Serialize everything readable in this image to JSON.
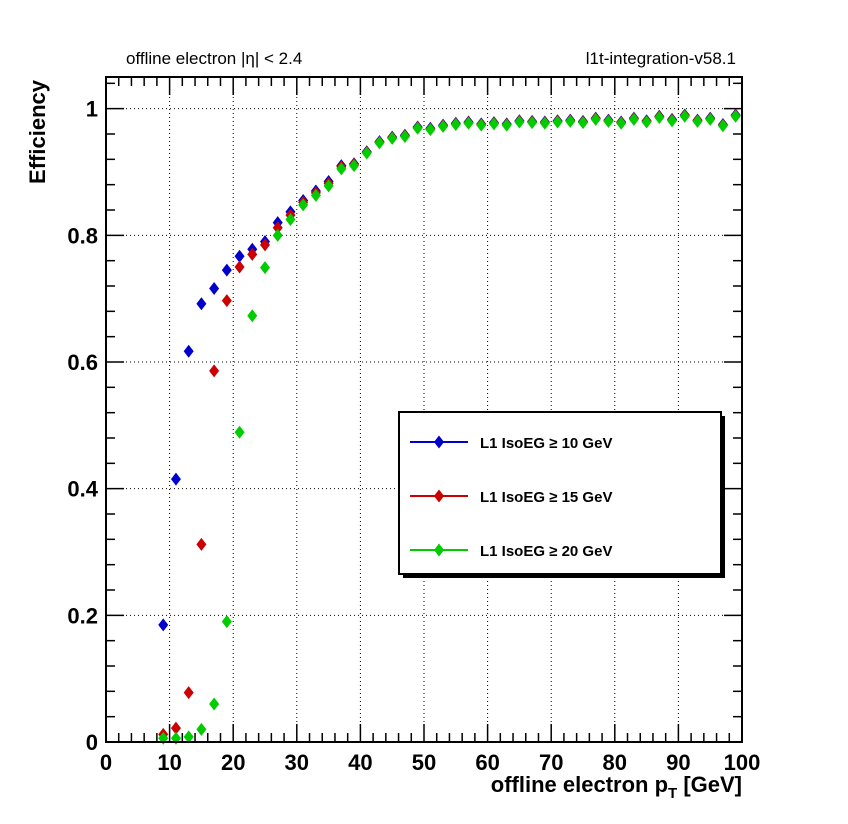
{
  "header": {
    "left_text": "offline electron |η| < 2.4",
    "right_text": "l1t-integration-v58.1"
  },
  "chart_data": {
    "type": "scatter",
    "xlabel_main": "offline electron p",
    "xlabel_sub": "T",
    "xlabel_unit": " [GeV]",
    "ylabel": "Efficiency",
    "xlim": [
      0,
      100
    ],
    "ylim": [
      0,
      1.05
    ],
    "x_ticks": [
      0,
      10,
      20,
      30,
      40,
      50,
      60,
      70,
      80,
      90,
      100
    ],
    "x_tick_labels": [
      "0",
      "10",
      "20",
      "30",
      "40",
      "50",
      "60",
      "70",
      "80",
      "90",
      "100"
    ],
    "y_ticks": [
      0,
      0.2,
      0.4,
      0.6,
      0.8,
      1
    ],
    "y_tick_labels": [
      "0",
      "0.2",
      "0.4",
      "0.6",
      "0.8",
      "1"
    ],
    "grid": true,
    "legend_position": "center-right",
    "series": [
      {
        "name": "L1 IsoEG ≥ 10 GeV",
        "color": "#0000cc",
        "x": [
          9,
          11,
          13,
          15,
          17,
          19,
          21,
          23,
          25,
          27,
          29,
          31,
          33,
          35,
          37,
          39,
          41,
          43,
          45,
          47,
          49,
          51,
          53,
          55,
          57,
          59,
          61,
          63,
          65,
          67,
          69,
          71,
          73,
          75,
          77,
          79,
          81,
          83,
          85,
          87,
          89,
          91,
          93,
          95,
          97,
          99
        ],
        "y": [
          0.185,
          0.415,
          0.617,
          0.692,
          0.716,
          0.745,
          0.767,
          0.778,
          0.79,
          0.82,
          0.837,
          0.855,
          0.87,
          0.885,
          0.91,
          0.913,
          0.932,
          0.948,
          0.955,
          0.958,
          0.971,
          0.969,
          0.974,
          0.977,
          0.979,
          0.976,
          0.978,
          0.976,
          0.981,
          0.98,
          0.979,
          0.981,
          0.982,
          0.98,
          0.985,
          0.982,
          0.979,
          0.985,
          0.981,
          0.988,
          0.983,
          0.99,
          0.982,
          0.985,
          0.975,
          0.99
        ]
      },
      {
        "name": "L1 IsoEG ≥ 15 GeV",
        "color": "#cc0000",
        "x": [
          9,
          11,
          13,
          15,
          17,
          19,
          21,
          23,
          25,
          27,
          29,
          31,
          33,
          35,
          37,
          39,
          41,
          43,
          45,
          47,
          49,
          51,
          53,
          55,
          57,
          59,
          61,
          63,
          65,
          67,
          69,
          71,
          73,
          75,
          77,
          79,
          81,
          83,
          85,
          87,
          89,
          91,
          93,
          95,
          97,
          99
        ],
        "y": [
          0.012,
          0.022,
          0.078,
          0.312,
          0.586,
          0.697,
          0.75,
          0.77,
          0.785,
          0.812,
          0.832,
          0.852,
          0.867,
          0.882,
          0.908,
          0.912,
          0.931,
          0.947,
          0.954,
          0.957,
          0.97,
          0.968,
          0.973,
          0.976,
          0.978,
          0.975,
          0.977,
          0.975,
          0.98,
          0.979,
          0.978,
          0.98,
          0.981,
          0.979,
          0.984,
          0.981,
          0.978,
          0.984,
          0.98,
          0.987,
          0.982,
          0.989,
          0.981,
          0.984,
          0.974,
          0.989
        ]
      },
      {
        "name": "L1 IsoEG ≥ 20 GeV",
        "color": "#00cc00",
        "x": [
          9,
          11,
          13,
          15,
          17,
          19,
          21,
          23,
          25,
          27,
          29,
          31,
          33,
          35,
          37,
          39,
          41,
          43,
          45,
          47,
          49,
          51,
          53,
          55,
          57,
          59,
          61,
          63,
          65,
          67,
          69,
          71,
          73,
          75,
          77,
          79,
          81,
          83,
          85,
          87,
          89,
          91,
          93,
          95,
          97,
          99
        ],
        "y": [
          0.006,
          0.006,
          0.008,
          0.02,
          0.06,
          0.19,
          0.489,
          0.673,
          0.749,
          0.8,
          0.825,
          0.848,
          0.863,
          0.878,
          0.905,
          0.91,
          0.93,
          0.946,
          0.953,
          0.956,
          0.969,
          0.967,
          0.972,
          0.975,
          0.977,
          0.974,
          0.976,
          0.974,
          0.979,
          0.978,
          0.977,
          0.979,
          0.98,
          0.978,
          0.983,
          0.98,
          0.977,
          0.983,
          0.979,
          0.986,
          0.981,
          0.988,
          0.98,
          0.983,
          0.973,
          0.988
        ]
      }
    ]
  }
}
